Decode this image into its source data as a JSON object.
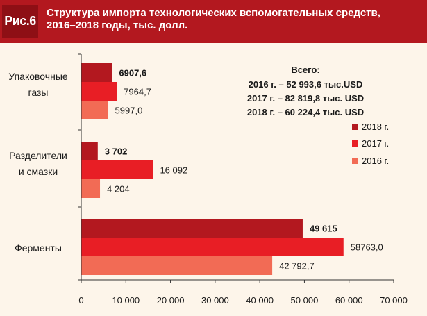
{
  "header": {
    "label": "Рис.6",
    "title_line1": "Структура импорта технологических вспомогательных средств,",
    "title_line2": "2016–2018 годы, тыс. долл."
  },
  "totals": {
    "heading": "Всего:",
    "lines": [
      "2016 г. – 52 993,6 тыс.USD",
      "2017 г. – 82 819,8 тыс. USD",
      "2018 г. – 60 224,4 тыс. USD"
    ]
  },
  "chart_data": {
    "type": "bar",
    "orientation": "horizontal",
    "categories": [
      [
        "Упаковочные",
        "газы"
      ],
      [
        "Разделители",
        "и смазки"
      ],
      [
        "Ферменты"
      ]
    ],
    "series": [
      {
        "name": "2018 г.",
        "color": "#b3181f",
        "values": [
          6907.6,
          3702,
          49615
        ],
        "labels": [
          "6907,6",
          "3 702",
          "49 615"
        ],
        "bold": true
      },
      {
        "name": "2017 г.",
        "color": "#e81e25",
        "values": [
          7964.7,
          16092,
          58763.0
        ],
        "labels": [
          "7964,7",
          "16 092",
          "58763,0"
        ],
        "bold": false
      },
      {
        "name": "2016 г.",
        "color": "#f26b55",
        "values": [
          5997.0,
          4204,
          42792.7
        ],
        "labels": [
          "5997,0",
          "4 204",
          "42 792,7"
        ],
        "bold": false
      }
    ],
    "xlim": [
      0,
      70000
    ],
    "ticks": [
      0,
      10000,
      20000,
      30000,
      40000,
      50000,
      60000,
      70000
    ],
    "tick_labels": [
      "0",
      "10 000",
      "20 000",
      "30 000",
      "40 000",
      "50 000",
      "60 000",
      "70 000"
    ],
    "legend_position": "right",
    "grid": false
  }
}
